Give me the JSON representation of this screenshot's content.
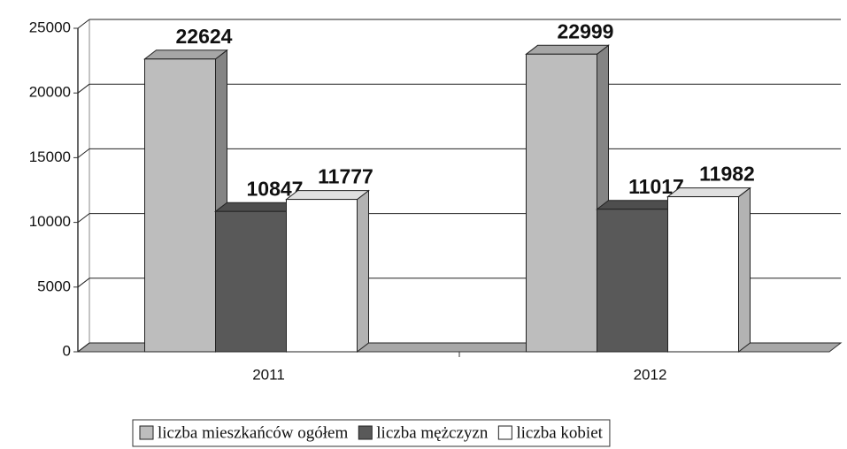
{
  "chart_data": {
    "type": "bar",
    "categories": [
      "2011",
      "2012"
    ],
    "series": [
      {
        "name": "liczba mieszkańców ogółem",
        "color": "#bdbdbd",
        "values": [
          22624,
          22999
        ]
      },
      {
        "name": "liczba mężczyzn",
        "color": "#595959",
        "values": [
          10847,
          11017
        ]
      },
      {
        "name": "liczba kobiet",
        "color": "#ffffff",
        "values": [
          11777,
          11982
        ]
      }
    ],
    "ylim": [
      0,
      25000
    ],
    "yticks": [
      0,
      5000,
      10000,
      15000,
      20000,
      25000
    ],
    "grid": true,
    "legend": "bottom"
  }
}
